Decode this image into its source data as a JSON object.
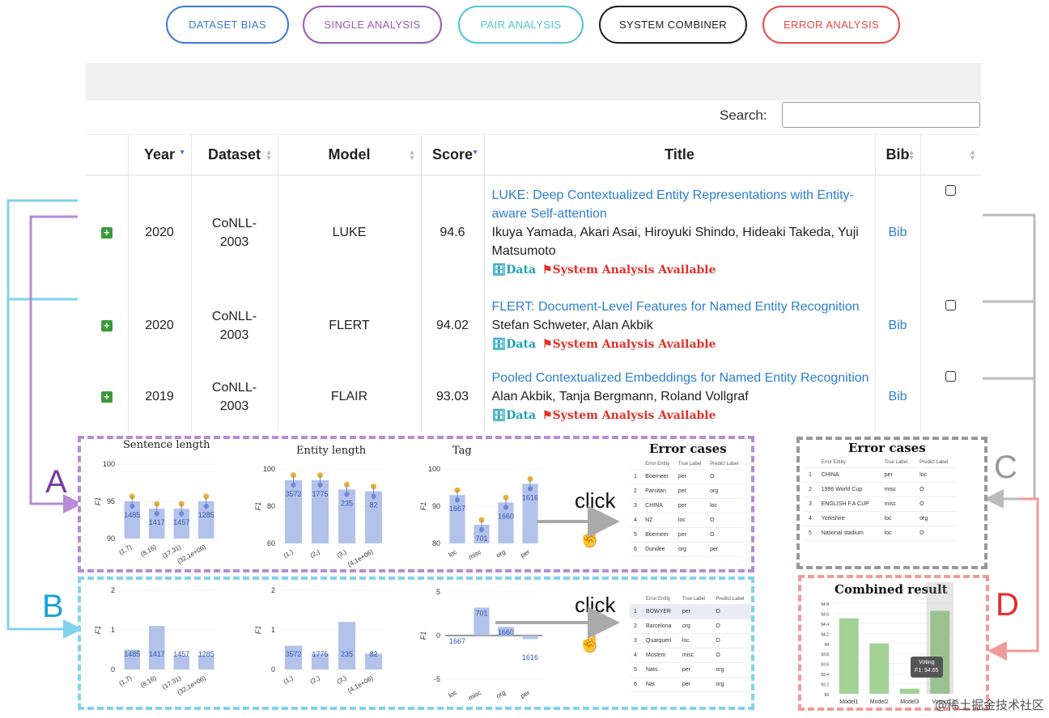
{
  "tabs": [
    {
      "label": "DATASET BIAS",
      "color": "#3a7bd5"
    },
    {
      "label": "SINGLE ANALYSIS",
      "color": "#9b59b6"
    },
    {
      "label": "PAIR ANALYSIS",
      "color": "#4fc3d9"
    },
    {
      "label": "SYSTEM COMBINER",
      "color": "#222222"
    },
    {
      "label": "ERROR ANALYSIS",
      "color": "#e84a4a"
    }
  ],
  "search": {
    "label": "Search:",
    "value": ""
  },
  "table": {
    "headers": [
      "",
      "Year",
      "Dataset",
      "Model",
      "Score",
      "Title",
      "Bib",
      ""
    ],
    "rows": [
      {
        "expand": "+",
        "year": "2020",
        "dataset": "CoNLL-\n2003",
        "model": "LUKE",
        "score": "94.6",
        "title": "LUKE: Deep Contextualized Entity Representations with Entity-aware Self-attention",
        "authors": "Ikuya Yamada, Akari Asai, Hiroyuki Shindo, Hideaki Takeda, Yuji Matsumoto",
        "data_tag": "Data",
        "sys_tag": "System Analysis Available",
        "bib": "Bib"
      },
      {
        "expand": "+",
        "year": "2020",
        "dataset": "CoNLL-\n2003",
        "model": "FLERT",
        "score": "94.02",
        "title": "FLERT: Document-Level Features for Named Entity Recognition",
        "authors": "Stefan Schweter, Alan Akbik",
        "data_tag": "Data",
        "sys_tag": "System Analysis Available",
        "bib": "Bib"
      },
      {
        "expand": "+",
        "year": "2019",
        "dataset": "CoNLL-\n2003",
        "model": "FLAIR",
        "score": "93.03",
        "title": "Pooled Contextualized Embeddings for Named Entity Recognition",
        "authors": "Alan Akbik, Tanja Bergmann, Roland Vollgraf",
        "data_tag": "Data",
        "sys_tag": "System Analysis Available",
        "bib": "Bib"
      }
    ]
  },
  "labels": {
    "A": "A",
    "B": "B",
    "C": "C",
    "D": "D",
    "click": "click"
  },
  "box_a": {
    "error_cases_title": "Error cases",
    "error_table": {
      "header": [
        "",
        "Error Entity",
        "True Label",
        "Predict Label"
      ],
      "rows": [
        [
          "1",
          "Boerneer",
          "per",
          "O"
        ],
        [
          "2",
          "Parsitan",
          "per",
          "org"
        ],
        [
          "3",
          "CHINA",
          "per",
          "loc"
        ],
        [
          "4",
          "NZ",
          "loc",
          "O"
        ],
        [
          "5",
          "Boerneer",
          "per",
          "O"
        ],
        [
          "6",
          "Dundee",
          "org",
          "per"
        ]
      ]
    }
  },
  "box_b": {
    "error_table": {
      "header": [
        "",
        "Error Entity",
        "True Label",
        "Predict Label"
      ],
      "rows": [
        [
          "1",
          "BOWYER",
          "per",
          "O"
        ],
        [
          "2",
          "Barcelona",
          "org",
          "O"
        ],
        [
          "3",
          "Quarqueri",
          "loc",
          "O"
        ],
        [
          "4",
          "Moslem",
          "misc",
          "O"
        ],
        [
          "5",
          "Nats",
          "per",
          "org"
        ],
        [
          "6",
          "Nat",
          "per",
          "org"
        ]
      ]
    }
  },
  "box_c": {
    "title": "Error cases",
    "error_table": {
      "header": [
        "",
        "Error Entity",
        "True Label",
        "Predict Label"
      ],
      "rows": [
        [
          "1",
          "CHINA",
          "per",
          "loc"
        ],
        [
          "2",
          "1996 World Cup",
          "misc",
          "O"
        ],
        [
          "3",
          "ENGLISH F.A CUP",
          "misc",
          "O"
        ],
        [
          "4",
          "Yorkshire",
          "loc",
          "org"
        ],
        [
          "5",
          "National stadium",
          "loc",
          "O"
        ]
      ]
    }
  },
  "box_d": {
    "title": "Combined result",
    "tooltip_line1": "Voting",
    "tooltip_line2": "F1: 94.65"
  },
  "watermark": "@稀土掘金技术社区",
  "chart_data": [
    {
      "type": "bar",
      "title": "Sentence length",
      "ylabel": "F1",
      "categories": [
        "(1,7)",
        "(8,16)",
        "(17,31)",
        "(32,1e+06)"
      ],
      "values": [
        95,
        94,
        94,
        95
      ],
      "data_labels": [
        "1485",
        "1417",
        "1457",
        "1285"
      ],
      "ylim": [
        90,
        100
      ]
    },
    {
      "type": "bar",
      "title": "Entity length",
      "ylabel": "F1",
      "categories": [
        "(1,)",
        "(2,)",
        "(3,)",
        "(4,1e+06)"
      ],
      "values": [
        94,
        94,
        89,
        88
      ],
      "data_labels": [
        "3572",
        "1775",
        "235",
        "82"
      ],
      "ylim": [
        60,
        100
      ]
    },
    {
      "type": "bar",
      "title": "Tag",
      "ylabel": "F1",
      "categories": [
        "loc",
        "misc",
        "org",
        "per"
      ],
      "values": [
        93,
        85,
        91,
        96
      ],
      "data_labels": [
        "1667",
        "701",
        "1660",
        "1616"
      ],
      "ylim": [
        80,
        100
      ]
    },
    {
      "type": "bar",
      "title": "",
      "ylabel": "F1",
      "categories": [
        "(1,7)",
        "(8,16)",
        "(17,31)",
        "(32,1e+06)"
      ],
      "values": [
        0.5,
        1.1,
        0.35,
        0.35
      ],
      "data_labels": [
        "1485",
        "1417",
        "1457",
        "1285"
      ],
      "ylim": [
        0,
        2
      ]
    },
    {
      "type": "bar",
      "title": "",
      "ylabel": "F1",
      "categories": [
        "(1,)",
        "(2,)",
        "(3,)",
        "(4,1e+06)"
      ],
      "values": [
        0.6,
        0.4,
        1.2,
        0.4
      ],
      "data_labels": [
        "3572",
        "1775",
        "235",
        "82"
      ],
      "ylim": [
        0,
        2
      ]
    },
    {
      "type": "bar",
      "title": "",
      "ylabel": "F1",
      "categories": [
        "loc",
        "misc",
        "org",
        "per"
      ],
      "values": [
        0.0,
        3.2,
        1.0,
        -0.4
      ],
      "data_labels": [
        "1667",
        "701",
        "1660",
        "1616"
      ],
      "ylim": [
        -5,
        5
      ]
    },
    {
      "type": "bar",
      "title": "Combined result",
      "categories": [
        "Model1",
        "Model2",
        "Model3",
        "Voting"
      ],
      "values": [
        94.5,
        94.0,
        93.1,
        94.65
      ],
      "ylim": [
        93.0,
        94.8
      ]
    }
  ]
}
